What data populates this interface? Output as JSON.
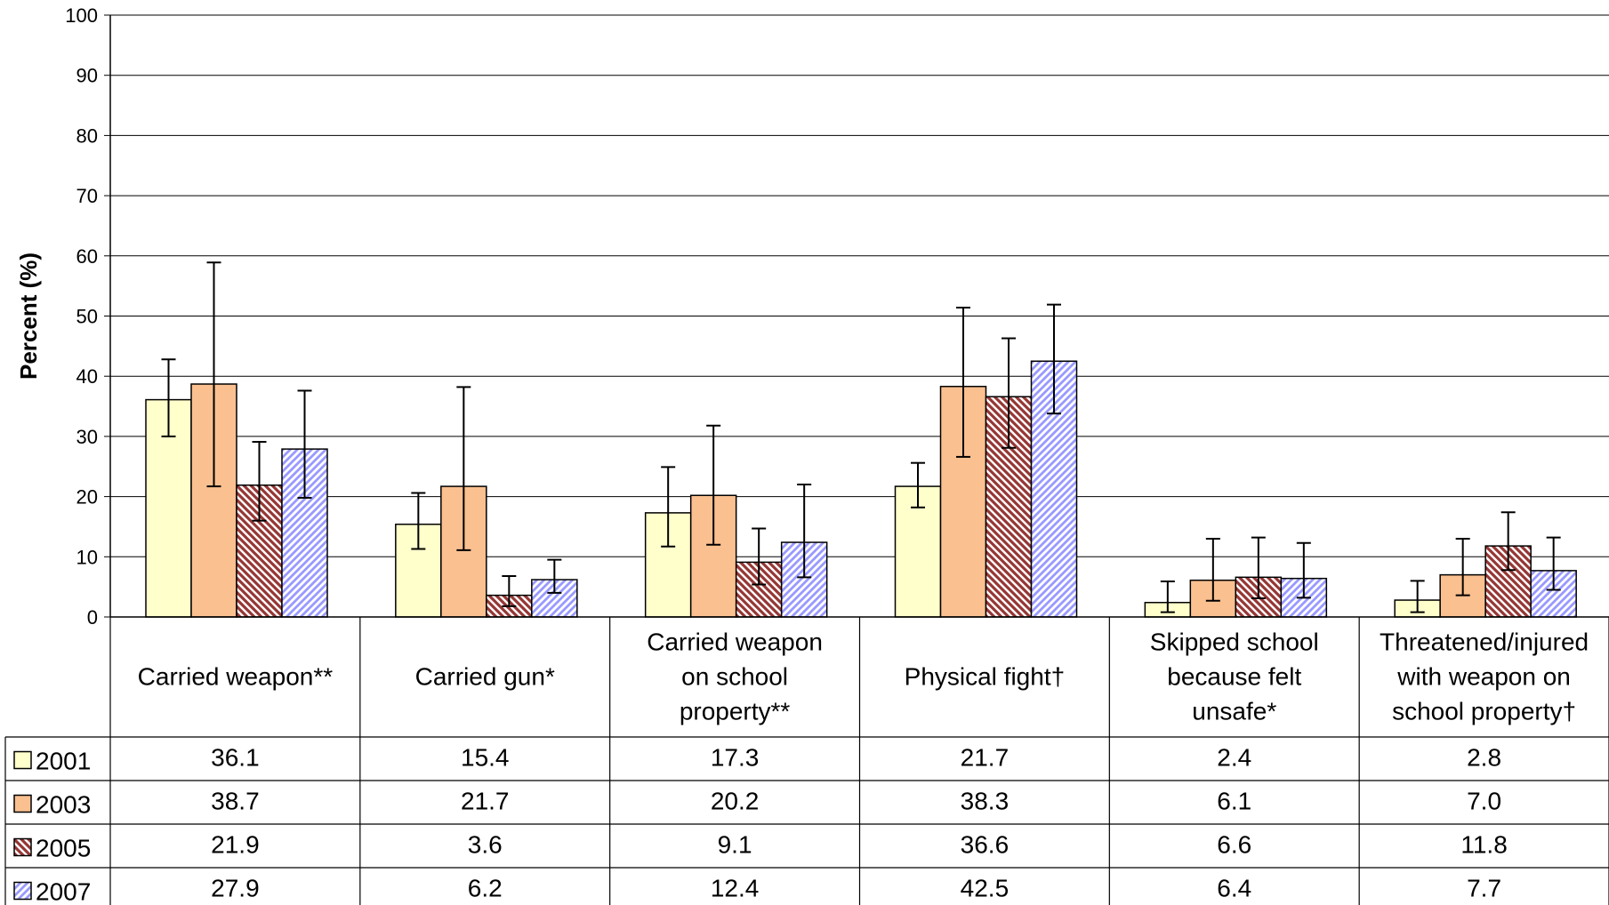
{
  "chart_data": {
    "type": "bar",
    "title": "",
    "xlabel": "",
    "ylabel": "Percent (%)",
    "ylim": [
      0,
      100
    ],
    "yticks": [
      0,
      10,
      20,
      30,
      40,
      50,
      60,
      70,
      80,
      90,
      100
    ],
    "grid": true,
    "legend": "data-table",
    "categories": [
      [
        "Carried weapon**"
      ],
      [
        "Carried gun*"
      ],
      [
        "Carried weapon",
        "on school",
        "property**"
      ],
      [
        "Physical fight†"
      ],
      [
        "Skipped school",
        "because felt",
        "unsafe*"
      ],
      [
        "Threatened/injured",
        "with weapon on",
        "school property†"
      ]
    ],
    "series": [
      {
        "name": "2001",
        "fill": "#ffffcc",
        "pattern": "solid",
        "values": [
          36.1,
          15.4,
          17.3,
          21.7,
          2.4,
          2.8
        ],
        "labels": [
          "36.1",
          "15.4",
          "17.3",
          "21.7",
          "2.4",
          "2.8"
        ],
        "ci_low": [
          30.0,
          11.3,
          11.7,
          18.2,
          0.8,
          0.8
        ],
        "ci_high": [
          42.8,
          20.6,
          24.9,
          25.6,
          5.9,
          6.0
        ]
      },
      {
        "name": "2003",
        "fill": "#fac090",
        "pattern": "solid",
        "values": [
          38.7,
          21.7,
          20.2,
          38.3,
          6.1,
          7.0
        ],
        "labels": [
          "38.7",
          "21.7",
          "20.2",
          "38.3",
          "6.1",
          "7.0"
        ],
        "ci_low": [
          21.7,
          11.1,
          12.0,
          26.6,
          2.7,
          3.6
        ],
        "ci_high": [
          58.9,
          38.2,
          31.8,
          51.4,
          13.0,
          13.0
        ]
      },
      {
        "name": "2005",
        "fill": "#ffffff",
        "pattern_color": "#953735",
        "pattern": "diagonal-down",
        "values": [
          21.9,
          3.6,
          9.1,
          36.6,
          6.6,
          11.8
        ],
        "labels": [
          "21.9",
          "3.6",
          "9.1",
          "36.6",
          "6.6",
          "11.8"
        ],
        "ci_low": [
          16.0,
          1.8,
          5.4,
          28.1,
          3.1,
          7.8
        ],
        "ci_high": [
          29.1,
          6.8,
          14.7,
          46.3,
          13.2,
          17.4
        ]
      },
      {
        "name": "2007",
        "fill": "#ffffff",
        "pattern_color": "#9999ff",
        "pattern": "diagonal-up",
        "values": [
          27.9,
          6.2,
          12.4,
          42.5,
          6.4,
          7.7
        ],
        "labels": [
          "27.9",
          "6.2",
          "12.4",
          "42.5",
          "6.4",
          "7.7"
        ],
        "ci_low": [
          19.8,
          4.0,
          6.6,
          33.8,
          3.2,
          4.5
        ],
        "ci_high": [
          37.6,
          9.5,
          22.0,
          51.9,
          12.3,
          13.2
        ]
      }
    ]
  }
}
